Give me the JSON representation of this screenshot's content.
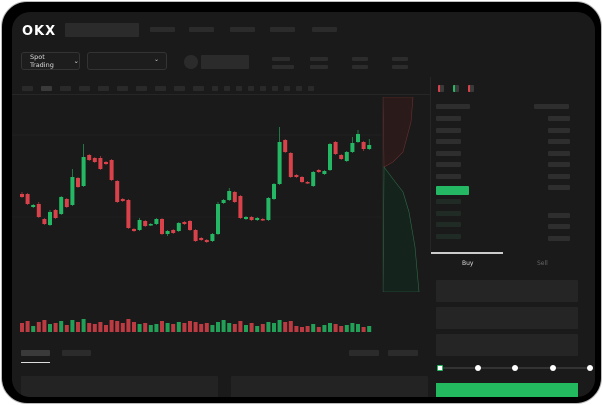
{
  "header": {
    "logo": "OKX"
  },
  "market_select": {
    "label": "Spot Trading",
    "chevron": "chevron-down-icon"
  },
  "pair_select": {
    "chevron": "chevron-down-icon"
  },
  "trade_tabs": {
    "buy": "Buy",
    "sell": "Sell"
  },
  "colors": {
    "up": "#25b864",
    "down": "#d9424a",
    "background": "#1a1a1a",
    "buy_button": "#22b95f"
  },
  "chart": {
    "candles": [
      [
        118,
        115,
        120,
        114
      ],
      [
        118,
        108,
        119,
        107
      ],
      [
        105,
        107,
        108,
        104
      ],
      [
        108,
        95,
        110,
        94
      ],
      [
        93,
        88,
        94,
        87
      ],
      [
        87,
        100,
        102,
        86
      ],
      [
        102,
        94,
        103,
        93
      ],
      [
        98,
        115,
        116,
        97
      ],
      [
        113,
        105,
        114,
        104
      ],
      [
        107,
        135,
        143,
        106
      ],
      [
        134,
        125,
        135,
        124
      ],
      [
        126,
        155,
        168,
        125
      ],
      [
        157,
        152,
        158,
        151
      ],
      [
        154,
        150,
        155,
        149
      ],
      [
        154,
        143,
        156,
        142
      ],
      [
        150,
        148,
        151,
        147
      ],
      [
        152,
        132,
        153,
        131
      ],
      [
        131,
        110,
        132,
        109
      ],
      [
        113,
        111,
        114,
        110
      ],
      [
        112,
        84,
        113,
        83
      ],
      [
        83,
        81,
        84,
        80
      ],
      [
        82,
        92,
        94,
        81
      ],
      [
        91,
        86,
        92,
        85
      ],
      [
        87,
        88,
        89,
        86
      ],
      [
        88,
        93,
        94,
        87
      ],
      [
        93,
        78,
        94,
        77
      ],
      [
        78,
        81,
        82,
        76
      ],
      [
        82,
        79,
        83,
        78
      ],
      [
        81,
        89,
        90,
        80
      ],
      [
        90,
        88,
        91,
        87
      ],
      [
        91,
        82,
        92,
        81
      ],
      [
        82,
        71,
        83,
        70
      ],
      [
        74,
        72,
        75,
        71
      ],
      [
        72,
        70,
        73,
        69
      ],
      [
        71,
        78,
        79,
        70
      ],
      [
        78,
        108,
        110,
        77
      ],
      [
        109,
        112,
        113,
        108
      ],
      [
        112,
        121,
        124,
        111
      ],
      [
        120,
        110,
        121,
        109
      ],
      [
        116,
        94,
        117,
        93
      ],
      [
        93,
        95,
        96,
        92
      ],
      [
        95,
        92,
        96,
        91
      ],
      [
        92,
        94,
        95,
        91
      ],
      [
        93,
        92,
        94,
        91
      ],
      [
        92,
        114,
        115,
        91
      ],
      [
        113,
        128,
        129,
        112
      ],
      [
        128,
        170,
        185,
        127
      ],
      [
        172,
        160,
        173,
        159
      ],
      [
        159,
        135,
        160,
        134
      ],
      [
        137,
        135,
        138,
        134
      ],
      [
        135,
        130,
        136,
        129
      ],
      [
        130,
        129,
        131,
        128
      ],
      [
        126,
        140,
        141,
        125
      ],
      [
        142,
        140,
        143,
        139
      ],
      [
        138,
        141,
        142,
        137
      ],
      [
        142,
        168,
        169,
        141
      ],
      [
        170,
        158,
        171,
        157
      ],
      [
        157,
        153,
        158,
        152
      ],
      [
        151,
        160,
        161,
        150
      ],
      [
        160,
        169,
        175,
        159
      ],
      [
        170,
        178,
        182,
        169
      ],
      [
        170,
        163,
        171,
        161
      ],
      [
        163,
        167,
        173,
        162
      ]
    ],
    "volumes": [
      9,
      11,
      6,
      10,
      12,
      8,
      9,
      11,
      7,
      12,
      10,
      13,
      9,
      8,
      10,
      7,
      12,
      11,
      9,
      13,
      10,
      8,
      9,
      7,
      8,
      11,
      9,
      8,
      10,
      9,
      11,
      10,
      8,
      9,
      7,
      10,
      12,
      9,
      8,
      11,
      7,
      9,
      6,
      8,
      10,
      9,
      12,
      10,
      11,
      6,
      5,
      6,
      8,
      5,
      7,
      9,
      8,
      6,
      7,
      9,
      8,
      5,
      6
    ]
  }
}
